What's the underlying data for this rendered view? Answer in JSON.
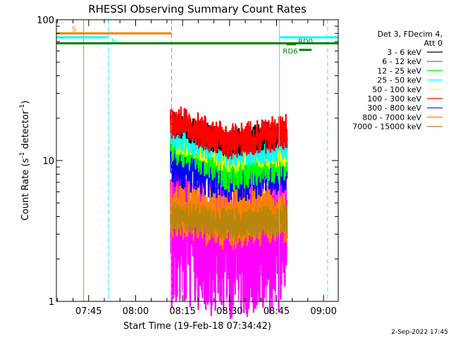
{
  "chart_data": {
    "type": "line",
    "title": "RHESSI Observing Summary Count Rates",
    "xlabel": "Start Time (19-Feb-18 07:34:42)",
    "ylabel_main": "Count Rate (s",
    "ylabel_sup1": "-1",
    "ylabel_mid": " detector",
    "ylabel_sup2": "-1",
    "ylabel_end": ")",
    "y_scale": "log",
    "ylim": [
      1,
      100
    ],
    "y_ticks": [
      "1",
      "10",
      "100"
    ],
    "xlim_minutes": [
      0,
      90
    ],
    "x_ticks": [
      {
        "label": "07:45",
        "minute": 10.3
      },
      {
        "label": "08:00",
        "minute": 25.3
      },
      {
        "label": "08:15",
        "minute": 40.3
      },
      {
        "label": "08:30",
        "minute": 55.3
      },
      {
        "label": "08:45",
        "minute": 70.3
      },
      {
        "label": "09:00",
        "minute": 85.3
      }
    ],
    "data_window_minutes": [
      36.5,
      73.5
    ],
    "legend_header": [
      "Det 3, FDecim 4,",
      "Att 0"
    ],
    "series": [
      {
        "name": "3 - 6 keV",
        "color": "#000000",
        "level_start": 18,
        "level_mid": 13,
        "level_end": 16,
        "spread": 0.1
      },
      {
        "name": "6 - 12 keV",
        "color": "#ff00ff",
        "level_start": 3.2,
        "level_mid": 2.6,
        "level_end": 3.0,
        "spread": 0.55
      },
      {
        "name": "12 - 25 keV",
        "color": "#00ff00",
        "level_start": 14,
        "level_mid": 9.0,
        "level_end": 10.5,
        "spread": 0.18
      },
      {
        "name": "25 - 50 keV",
        "color": "#00ffff",
        "level_start": 16,
        "level_mid": 11.5,
        "level_end": 13,
        "spread": 0.12
      },
      {
        "name": "50 - 100 keV",
        "color": "#ffff00",
        "level_start": 15.5,
        "level_mid": 11,
        "level_end": 12.5,
        "spread": 0.14
      },
      {
        "name": "100 - 300 keV",
        "color": "#ff0000",
        "level_start": 19,
        "level_mid": 13.5,
        "level_end": 16,
        "spread": 0.13
      },
      {
        "name": "300 - 800 keV",
        "color": "#0000ff",
        "level_start": 9.5,
        "level_mid": 7.5,
        "level_end": 8.5,
        "spread": 0.18
      },
      {
        "name": "800 - 7000 keV",
        "color": "#ff8000",
        "level_start": 4.6,
        "level_mid": 3.8,
        "level_end": 4.2,
        "spread": 0.22
      },
      {
        "name": "7000 - 15000 keV",
        "color": "#b8860b",
        "level_start": 4.0,
        "level_mid": 3.5,
        "level_end": 3.8,
        "spread": 0.12
      }
    ],
    "annotations": {
      "flags": [
        {
          "label": "S",
          "color": "#ff8000",
          "start": 0,
          "end": 36.8,
          "level": 80
        },
        {
          "label": "N",
          "color": "#00ffff",
          "start": 0,
          "end": 16.6,
          "level": 75
        },
        {
          "label": "",
          "color": "#00ffff",
          "start": 71.2,
          "end": 90,
          "level": 75
        },
        {
          "label": "",
          "color": "#008000",
          "start": 0,
          "end": 90,
          "level": 68
        },
        {
          "label": "RD6",
          "color": "#008000",
          "start": 77.5,
          "end": 81.5,
          "level": 61
        },
        {
          "label": "RD0",
          "color": "#008000",
          "start": 73.5,
          "end": 76.5,
          "level": 67
        }
      ],
      "vlines": [
        {
          "color": "#ff8000",
          "minute": 8.7,
          "dashed": false
        },
        {
          "color": "#00ffff",
          "minute": 16.6,
          "dashed": true
        },
        {
          "color": "#ff8000",
          "minute": 36.8,
          "dashed": true
        },
        {
          "color": "#00ffff",
          "minute": 71.2,
          "dashed": false
        },
        {
          "color": "#00ffff",
          "minute": 86.6,
          "dashed": true
        }
      ]
    }
  },
  "footer": {
    "date": "2-Sep-2022 17:45"
  }
}
